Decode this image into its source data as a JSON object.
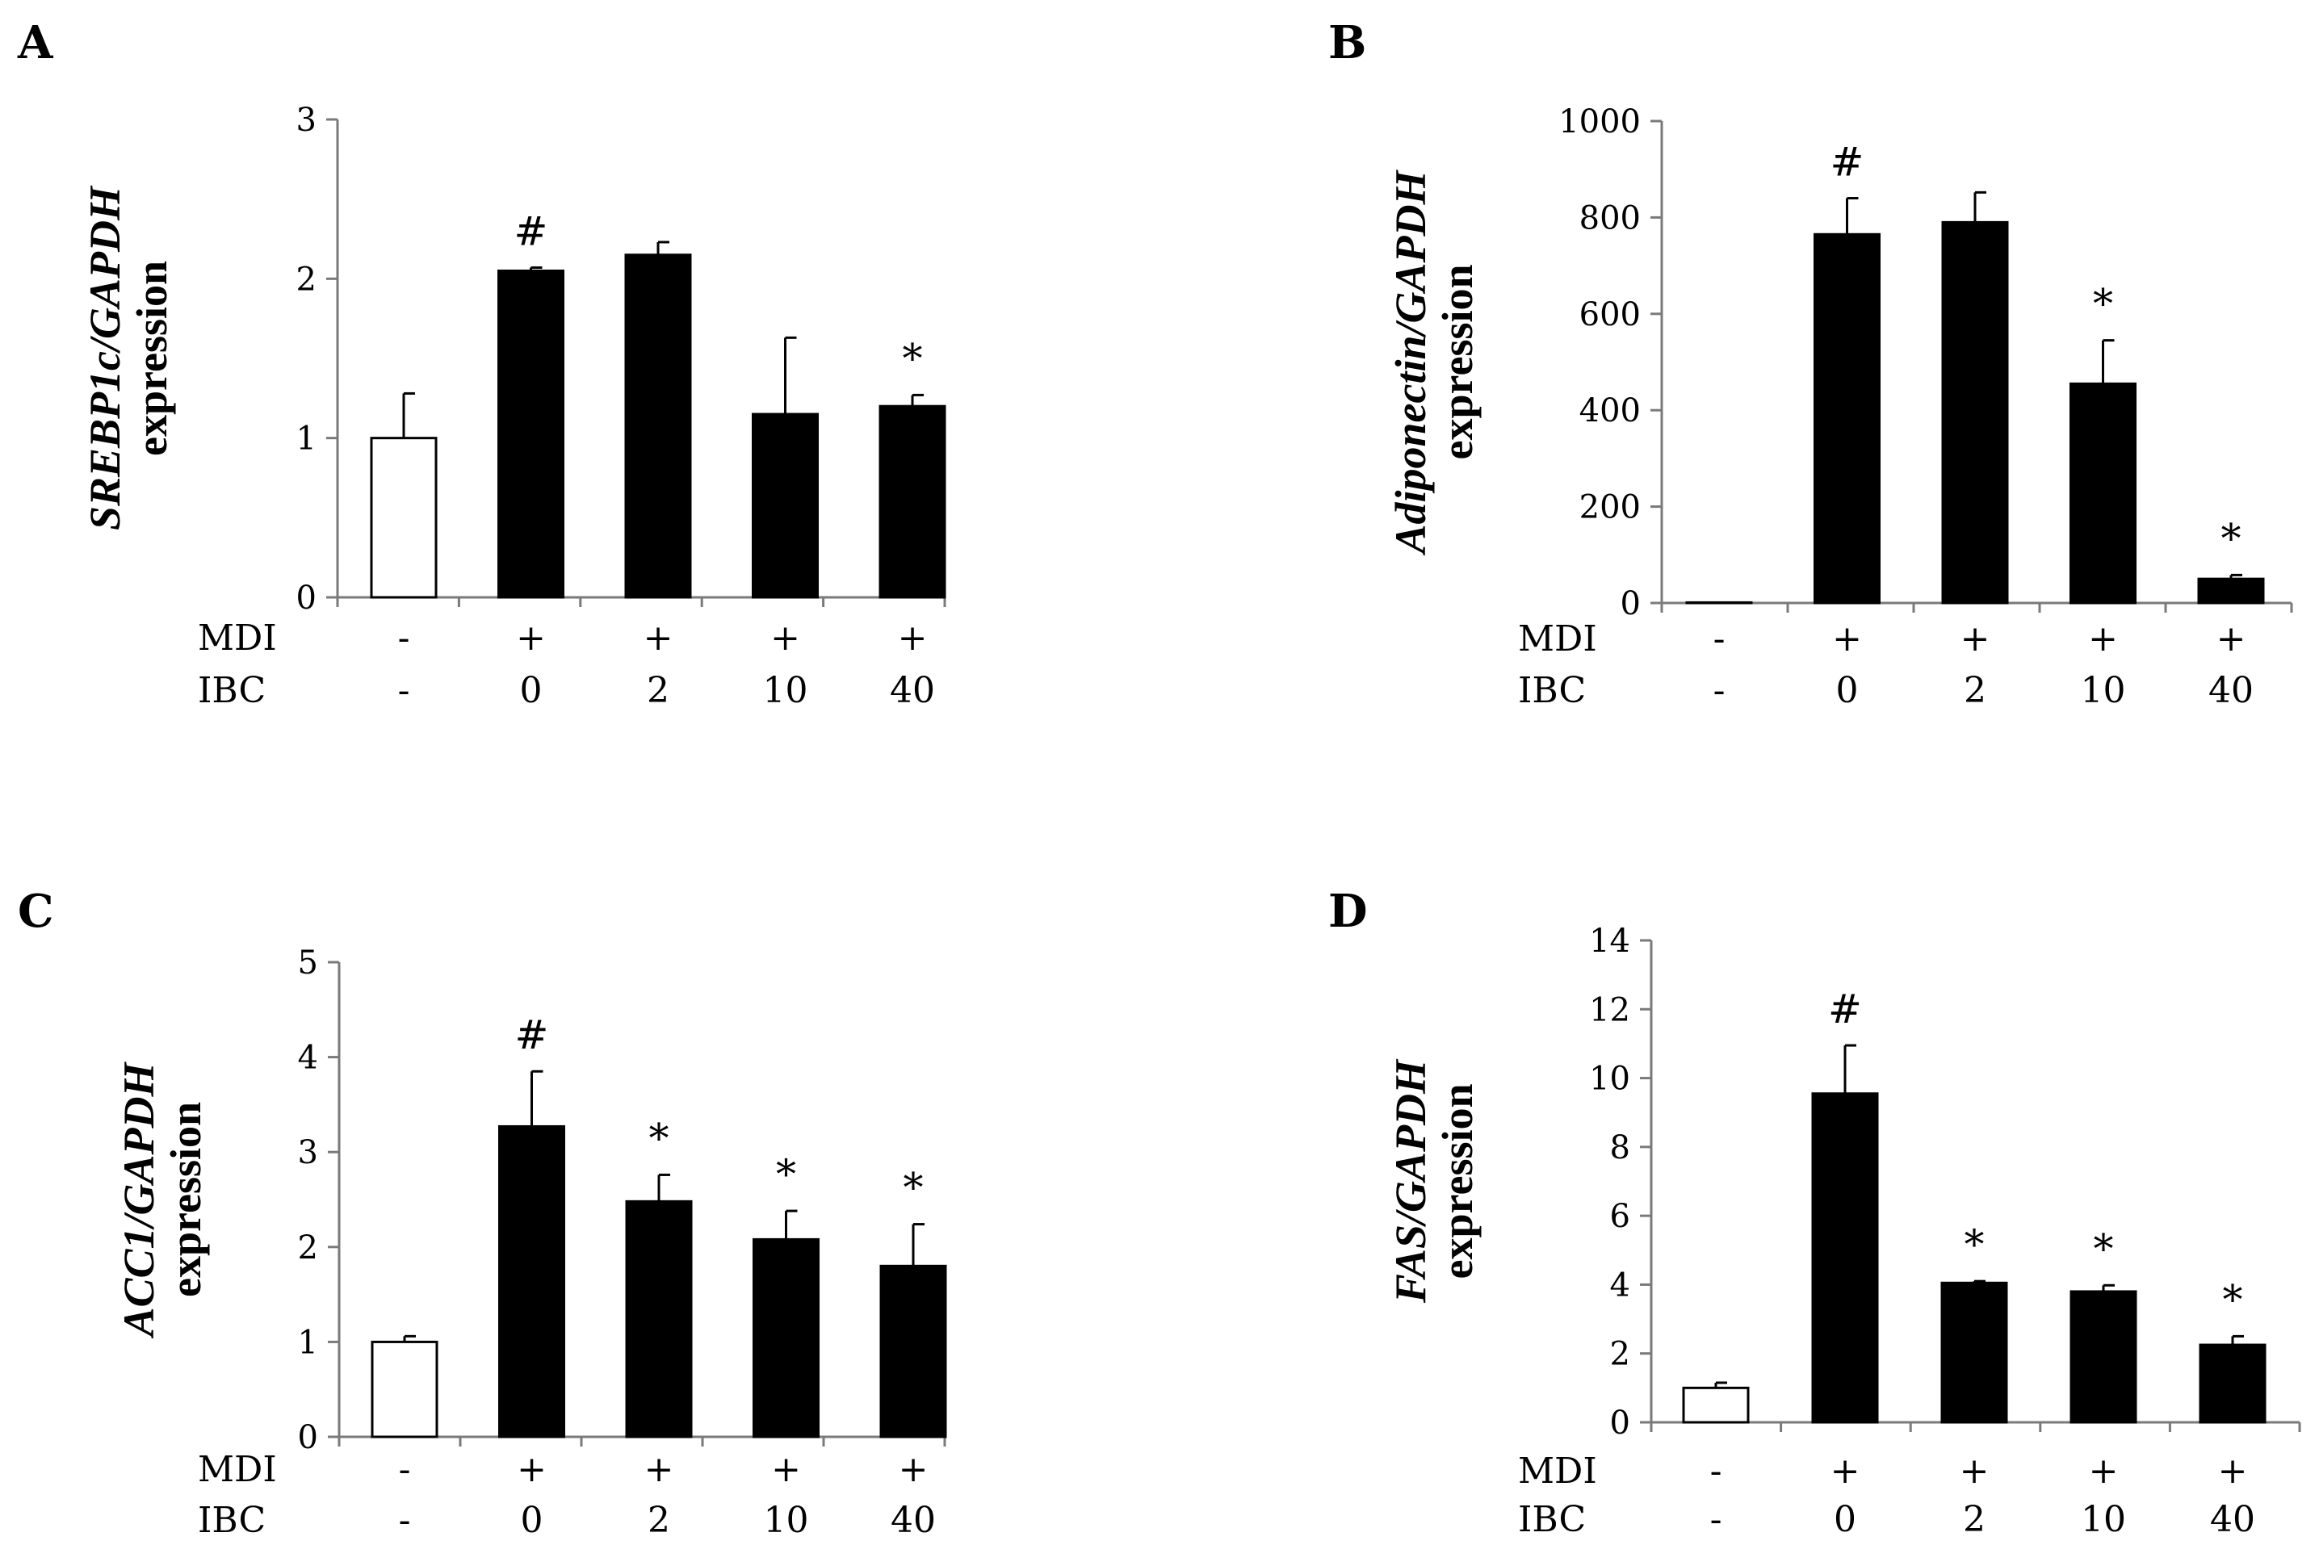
{
  "figure_rows": [
    "MDI",
    "IBC"
  ],
  "chart_data": [
    {
      "type": "bar",
      "panel": "A",
      "ylabel_gene": "SREBP1c/GAPDH",
      "ylabel_suffix": "expression",
      "ylim": [
        0,
        3
      ],
      "yticks": [
        0,
        1,
        2,
        3
      ],
      "mdi": [
        "-",
        "+",
        "+",
        "+",
        "+"
      ],
      "ibc": [
        "-",
        "0",
        "2",
        "10",
        "40"
      ],
      "values": [
        1.0,
        2.05,
        2.15,
        1.15,
        1.2
      ],
      "errors": [
        0.28,
        0.02,
        0.08,
        0.48,
        0.07
      ],
      "annotations": [
        "",
        "#",
        "",
        "",
        "*"
      ],
      "bar_colors": [
        "#ffffff",
        "#000000",
        "#000000",
        "#000000",
        "#000000"
      ]
    },
    {
      "type": "bar",
      "panel": "B",
      "ylabel_gene": "Adiponectin/GAPDH",
      "ylabel_suffix": "expression",
      "ylim": [
        0,
        1000
      ],
      "yticks": [
        0,
        200,
        400,
        600,
        800,
        1000
      ],
      "mdi": [
        "-",
        "+",
        "+",
        "+",
        "+"
      ],
      "ibc": [
        "-",
        "0",
        "2",
        "10",
        "40"
      ],
      "values": [
        1,
        765,
        790,
        455,
        50
      ],
      "errors": [
        0,
        75,
        62,
        90,
        8
      ],
      "annotations": [
        "",
        "#",
        "",
        "*",
        "*"
      ],
      "bar_colors": [
        "#ffffff",
        "#000000",
        "#000000",
        "#000000",
        "#000000"
      ]
    },
    {
      "type": "bar",
      "panel": "C",
      "ylabel_gene": "ACC1/GAPDH",
      "ylabel_suffix": "expression",
      "ylim": [
        0,
        5
      ],
      "yticks": [
        0,
        1,
        2,
        3,
        4,
        5
      ],
      "mdi": [
        "-",
        "+",
        "+",
        "+",
        "+"
      ],
      "ibc": [
        "-",
        "0",
        "2",
        "10",
        "40"
      ],
      "values": [
        1.0,
        3.27,
        2.48,
        2.08,
        1.8
      ],
      "errors": [
        0.06,
        0.58,
        0.28,
        0.3,
        0.44
      ],
      "annotations": [
        "",
        "#",
        "*",
        "*",
        "*"
      ],
      "bar_colors": [
        "#ffffff",
        "#000000",
        "#000000",
        "#000000",
        "#000000"
      ]
    },
    {
      "type": "bar",
      "panel": "D",
      "ylabel_gene": "FAS/GAPDH",
      "ylabel_suffix": "expression",
      "ylim": [
        0,
        14
      ],
      "yticks": [
        0,
        2,
        4,
        6,
        8,
        10,
        12,
        14
      ],
      "mdi": [
        "-",
        "+",
        "+",
        "+",
        "+"
      ],
      "ibc": [
        "-",
        "0",
        "2",
        "10",
        "40"
      ],
      "values": [
        1.0,
        9.55,
        4.05,
        3.8,
        2.25
      ],
      "errors": [
        0.15,
        1.4,
        0.05,
        0.18,
        0.25
      ],
      "annotations": [
        "",
        "#",
        "*",
        "*",
        "*"
      ],
      "bar_colors": [
        "#ffffff",
        "#000000",
        "#000000",
        "#000000",
        "#000000"
      ]
    }
  ]
}
